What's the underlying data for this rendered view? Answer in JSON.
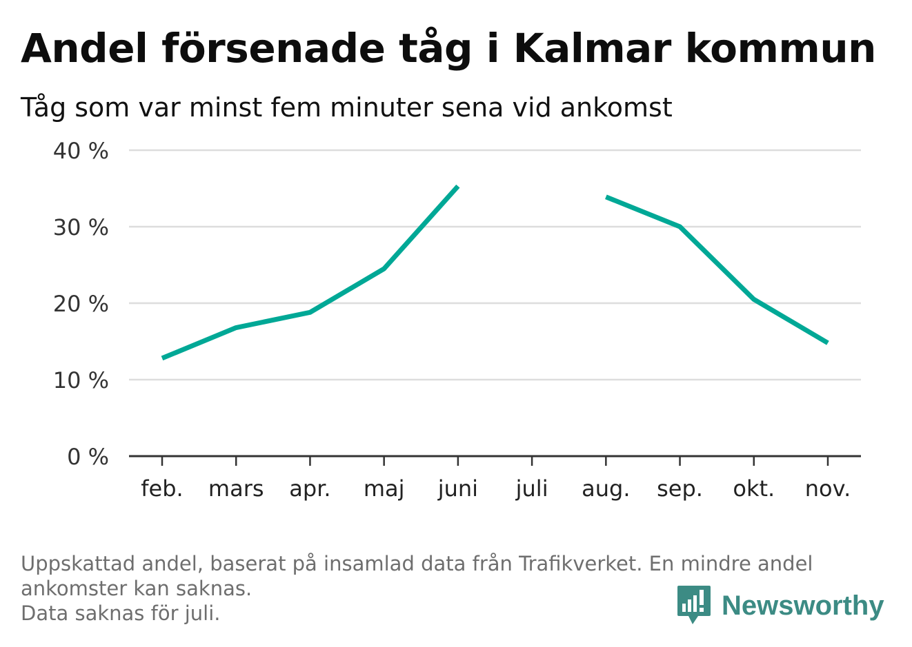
{
  "header": {
    "title": "Andel försenade tåg i Kalmar kommun",
    "subtitle": "Tåg som var minst fem minuter sena vid ankomst"
  },
  "footer": {
    "note_line1": "Uppskattad andel, baserat på insamlad data från Trafikverket. En mindre andel",
    "note_line2": "ankomster kan saknas.",
    "note_line3": "Data saknas för juli.",
    "brand": "Newsworthy",
    "brand_icon": "chart-speech-bubble-icon",
    "brand_color": "#3c8b84"
  },
  "chart_data": {
    "type": "line",
    "title": "Andel försenade tåg i Kalmar kommun",
    "subtitle": "Tåg som var minst fem minuter sena vid ankomst",
    "xlabel": "",
    "ylabel": "",
    "categories": [
      "feb.",
      "mars",
      "apr.",
      "maj",
      "juni",
      "juli",
      "aug.",
      "sep.",
      "okt.",
      "nov."
    ],
    "series": [
      {
        "values": [
          12.8,
          16.8,
          18.8,
          24.5,
          35.3,
          null,
          33.9,
          30.0,
          20.5,
          14.8
        ],
        "color": "#00a896"
      }
    ],
    "ylim": [
      0,
      40
    ],
    "yticks": [
      0,
      10,
      20,
      30,
      40
    ],
    "ytick_labels": [
      "0 %",
      "10 %",
      "20 %",
      "30 %",
      "40 %"
    ],
    "grid": true,
    "legend": "none"
  }
}
